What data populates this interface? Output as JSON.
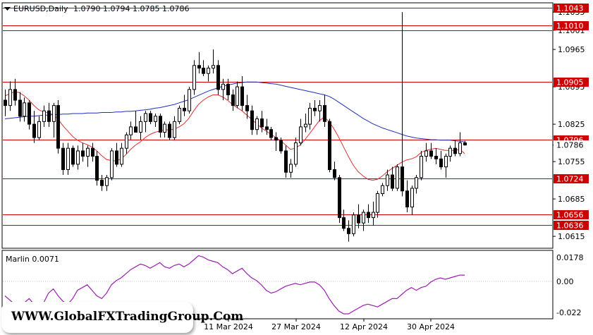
{
  "header": {
    "symbol": "EURUSD,Daily",
    "ohlc": "1.0790 1.0794 1.0785 1.0786"
  },
  "indicator": {
    "label": "Marlin 0.0071",
    "ticks": [
      "0.0178",
      "0.00",
      "-0.022"
    ],
    "color": "#9b1fb0"
  },
  "watermark": "WWW.GlobalFXTradingGroup.Com",
  "chart_data": {
    "type": "candlestick",
    "symbol": "EURUSD",
    "timeframe": "Daily",
    "y_ticks": [
      "1.1035",
      "1.1001",
      "1.0965",
      "1.0895",
      "1.0825",
      "1.0786",
      "1.0755",
      "1.0685",
      "1.0615"
    ],
    "ylim": [
      1.0594,
      1.1051
    ],
    "x_ticks": [
      "11 Mar 2024",
      "27 Mar 2024",
      "12 Apr 2024",
      "30 Apr 2024"
    ],
    "levels": [
      {
        "value": 1.1043,
        "label": "1.1043"
      },
      {
        "value": 1.101,
        "label": "1.1010"
      },
      {
        "value": 1.1001,
        "label": ""
      },
      {
        "value": 1.0905,
        "label": "1.0905"
      },
      {
        "value": 1.0796,
        "label": "1.0796"
      },
      {
        "value": 1.0724,
        "label": "1.0724"
      },
      {
        "value": 1.0656,
        "label": "1.0656"
      },
      {
        "value": 1.0636,
        "label": "1.0636"
      }
    ],
    "current_price": {
      "value": 1.0786,
      "label": "1.0786"
    },
    "level_color": "#cc0000",
    "ma_fast_color": "#e03030",
    "ma_slow_color": "#1f2fbf",
    "candles": [
      [
        1.087,
        1.089,
        1.084,
        1.086
      ],
      [
        1.086,
        1.0905,
        1.085,
        1.089
      ],
      [
        1.089,
        1.091,
        1.086,
        1.087
      ],
      [
        1.087,
        1.0885,
        1.083,
        1.084
      ],
      [
        1.084,
        1.0875,
        1.083,
        1.0865
      ],
      [
        1.0865,
        1.087,
        1.0815,
        1.0825
      ],
      [
        1.0825,
        1.085,
        1.079,
        1.08
      ],
      [
        1.08,
        1.084,
        1.0795,
        1.083
      ],
      [
        1.083,
        1.086,
        1.082,
        1.085
      ],
      [
        1.085,
        1.0865,
        1.082,
        1.083
      ],
      [
        1.083,
        1.0865,
        1.08,
        1.086
      ],
      [
        1.086,
        1.087,
        1.077,
        1.078
      ],
      [
        1.078,
        1.079,
        1.073,
        1.074
      ],
      [
        1.074,
        1.079,
        1.073,
        1.078
      ],
      [
        1.078,
        1.0785,
        1.0745,
        1.075
      ],
      [
        1.075,
        1.0785,
        1.074,
        1.0775
      ],
      [
        1.0775,
        1.079,
        1.0755,
        1.0765
      ],
      [
        1.0765,
        1.0785,
        1.0745,
        1.078
      ],
      [
        1.078,
        1.079,
        1.0755,
        1.0765
      ],
      [
        1.0765,
        1.0775,
        1.071,
        1.072
      ],
      [
        1.072,
        1.073,
        1.07,
        1.071
      ],
      [
        1.071,
        1.073,
        1.07,
        1.0725
      ],
      [
        1.0725,
        1.078,
        1.072,
        1.0775
      ],
      [
        1.0775,
        1.079,
        1.0745,
        1.075
      ],
      [
        1.075,
        1.079,
        1.0745,
        1.078
      ],
      [
        1.078,
        1.081,
        1.077,
        1.0805
      ],
      [
        1.0805,
        1.083,
        1.0795,
        1.082
      ],
      [
        1.082,
        1.085,
        1.081,
        1.081
      ],
      [
        1.081,
        1.084,
        1.0795,
        1.083
      ],
      [
        1.083,
        1.085,
        1.081,
        1.0845
      ],
      [
        1.0845,
        1.085,
        1.0825,
        1.083
      ],
      [
        1.083,
        1.0845,
        1.082,
        1.084
      ],
      [
        1.084,
        1.0845,
        1.08,
        1.081
      ],
      [
        1.081,
        1.083,
        1.08,
        1.0825
      ],
      [
        1.0825,
        1.083,
        1.0795,
        1.08
      ],
      [
        1.08,
        1.084,
        1.0795,
        1.083
      ],
      [
        1.083,
        1.086,
        1.0825,
        1.0855
      ],
      [
        1.0855,
        1.088,
        1.084,
        1.085
      ],
      [
        1.085,
        1.0895,
        1.0845,
        1.089
      ],
      [
        1.089,
        1.0945,
        1.088,
        1.0935
      ],
      [
        1.0935,
        1.096,
        1.092,
        1.093
      ],
      [
        1.093,
        1.0945,
        1.0915,
        1.092
      ],
      [
        1.092,
        1.0935,
        1.0905,
        1.093
      ],
      [
        1.093,
        1.0965,
        1.092,
        1.0935
      ],
      [
        1.0935,
        1.0945,
        1.088,
        1.089
      ],
      [
        1.089,
        1.091,
        1.087,
        1.09
      ],
      [
        1.09,
        1.091,
        1.087,
        1.088
      ],
      [
        1.088,
        1.089,
        1.085,
        1.086
      ],
      [
        1.086,
        1.0905,
        1.0855,
        1.0895
      ],
      [
        1.0895,
        1.0915,
        1.085,
        1.086
      ],
      [
        1.086,
        1.088,
        1.0835,
        1.085
      ],
      [
        1.085,
        1.086,
        1.0805,
        1.0815
      ],
      [
        1.0815,
        1.084,
        1.0805,
        1.0835
      ],
      [
        1.0835,
        1.085,
        1.081,
        1.082
      ],
      [
        1.082,
        1.0835,
        1.0805,
        1.0815
      ],
      [
        1.0815,
        1.082,
        1.0795,
        1.08
      ],
      [
        1.08,
        1.081,
        1.0775,
        1.0795
      ],
      [
        1.0795,
        1.08,
        1.077,
        1.0775
      ],
      [
        1.0775,
        1.0785,
        1.0725,
        1.0735
      ],
      [
        1.0735,
        1.076,
        1.0725,
        1.075
      ],
      [
        1.075,
        1.08,
        1.0745,
        1.079
      ],
      [
        1.079,
        1.0835,
        1.0785,
        1.082
      ],
      [
        1.082,
        1.0845,
        1.081,
        1.0825
      ],
      [
        1.0825,
        1.0865,
        1.0815,
        1.0855
      ],
      [
        1.0855,
        1.087,
        1.084,
        1.085
      ],
      [
        1.085,
        1.087,
        1.083,
        1.086
      ],
      [
        1.086,
        1.088,
        1.082,
        1.083
      ],
      [
        1.083,
        1.0835,
        1.0735,
        1.074
      ],
      [
        1.074,
        1.0755,
        1.072,
        1.0725
      ],
      [
        1.0725,
        1.073,
        1.064,
        1.065
      ],
      [
        1.065,
        1.0665,
        1.0625,
        1.063
      ],
      [
        1.063,
        1.0645,
        1.0605,
        1.062
      ],
      [
        1.062,
        1.066,
        1.0615,
        1.0655
      ],
      [
        1.0655,
        1.0675,
        1.063,
        1.064
      ],
      [
        1.064,
        1.0665,
        1.0625,
        1.066
      ],
      [
        1.066,
        1.0675,
        1.064,
        1.065
      ],
      [
        1.065,
        1.068,
        1.0635,
        1.066
      ],
      [
        1.066,
        1.07,
        1.065,
        1.0695
      ],
      [
        1.0695,
        1.0715,
        1.069,
        1.071
      ],
      [
        1.071,
        1.074,
        1.07,
        1.073
      ],
      [
        1.073,
        1.0745,
        1.07,
        1.0705
      ],
      [
        1.0705,
        1.075,
        1.07,
        1.0745
      ],
      [
        1.0745,
        1.1035,
        1.069,
        1.07
      ],
      [
        1.07,
        1.072,
        1.066,
        1.067
      ],
      [
        1.067,
        1.071,
        1.0655,
        1.0705
      ],
      [
        1.0705,
        1.073,
        1.0695,
        1.0725
      ],
      [
        1.0725,
        1.0775,
        1.072,
        1.0765
      ],
      [
        1.0765,
        1.079,
        1.0755,
        1.0775
      ],
      [
        1.0775,
        1.079,
        1.076,
        1.0765
      ],
      [
        1.0765,
        1.078,
        1.075,
        1.076
      ],
      [
        1.076,
        1.0775,
        1.074,
        1.0745
      ],
      [
        1.0745,
        1.077,
        1.0725,
        1.0765
      ],
      [
        1.0765,
        1.0785,
        1.0755,
        1.078
      ],
      [
        1.078,
        1.0795,
        1.0765,
        1.077
      ],
      [
        1.077,
        1.081,
        1.0765,
        1.079
      ],
      [
        1.079,
        1.0794,
        1.0785,
        1.0786
      ]
    ],
    "ma_fast": [
      1.0878,
      1.0882,
      1.0886,
      1.0884,
      1.0878,
      1.087,
      1.086,
      1.0852,
      1.0848,
      1.0846,
      1.0843,
      1.0834,
      1.0822,
      1.0812,
      1.0802,
      1.0795,
      1.079,
      1.0787,
      1.0782,
      1.0775,
      1.0766,
      1.0759,
      1.0757,
      1.0756,
      1.076,
      1.0768,
      1.0778,
      1.0786,
      1.0792,
      1.08,
      1.0806,
      1.081,
      1.0812,
      1.0815,
      1.0814,
      1.0816,
      1.082,
      1.0826,
      1.0836,
      1.085,
      1.0862,
      1.087,
      1.0876,
      1.088,
      1.088,
      1.0876,
      1.087,
      1.0862,
      1.0856,
      1.085,
      1.0842,
      1.0834,
      1.0826,
      1.0818,
      1.0812,
      1.0806,
      1.08,
      1.0794,
      1.0786,
      1.0778,
      1.078,
      1.0786,
      1.0796,
      1.0808,
      1.082,
      1.0832,
      1.0838,
      1.083,
      1.0816,
      1.08,
      1.0782,
      1.0764,
      1.0748,
      1.0736,
      1.0728,
      1.0722,
      1.072,
      1.0722,
      1.0728,
      1.0736,
      1.0742,
      1.0748,
      1.0754,
      1.0758,
      1.076,
      1.0764,
      1.0772,
      1.0776,
      1.0778,
      1.078,
      1.0778,
      1.0776,
      1.0776,
      1.0776,
      1.0778,
      1.077
    ],
    "ma_slow": [
      1.0835,
      1.0836,
      1.0837,
      1.0838,
      1.0839,
      1.084,
      1.084,
      1.0841,
      1.0842,
      1.0842,
      1.0843,
      1.0843,
      1.0844,
      1.0844,
      1.0845,
      1.0845,
      1.0845,
      1.0846,
      1.0846,
      1.0846,
      1.0847,
      1.0847,
      1.0847,
      1.0848,
      1.0848,
      1.0849,
      1.0849,
      1.085,
      1.0851,
      1.0852,
      1.0853,
      1.0855,
      1.0856,
      1.0858,
      1.086,
      1.0862,
      1.0865,
      1.0868,
      1.0871,
      1.0875,
      1.0879,
      1.0883,
      1.0887,
      1.089,
      1.0893,
      1.0896,
      1.0898,
      1.09,
      1.0902,
      1.0903,
      1.0904,
      1.0904,
      1.0904,
      1.0903,
      1.0902,
      1.0901,
      1.09,
      1.0898,
      1.0896,
      1.0894,
      1.0892,
      1.089,
      1.0888,
      1.0886,
      1.0884,
      1.0882,
      1.088,
      1.0877,
      1.0872,
      1.0866,
      1.086,
      1.0854,
      1.0848,
      1.0842,
      1.0836,
      1.0831,
      1.0826,
      1.0822,
      1.0818,
      1.0815,
      1.0812,
      1.0809,
      1.0806,
      1.0803,
      1.0801,
      1.0799,
      1.0798,
      1.0797,
      1.0796,
      1.0796,
      1.0795,
      1.0795,
      1.0795,
      1.0794,
      1.0793,
      1.0792
    ],
    "oscillator": [
      -0.01,
      -0.013,
      -0.016,
      -0.018,
      -0.015,
      -0.012,
      -0.016,
      -0.02,
      -0.015,
      -0.008,
      -0.005,
      -0.01,
      -0.014,
      -0.016,
      -0.012,
      -0.006,
      -0.004,
      -0.002,
      -0.006,
      -0.01,
      -0.012,
      -0.008,
      -0.002,
      0.001,
      0.003,
      0.006,
      0.009,
      0.011,
      0.013,
      0.012,
      0.01,
      0.012,
      0.014,
      0.011,
      0.01,
      0.012,
      0.013,
      0.011,
      0.013,
      0.016,
      0.019,
      0.018,
      0.016,
      0.015,
      0.014,
      0.011,
      0.009,
      0.006,
      0.008,
      0.01,
      0.006,
      0.003,
      0.001,
      -0.002,
      -0.006,
      -0.008,
      -0.007,
      -0.005,
      -0.003,
      -0.002,
      -0.001,
      -0.002,
      -0.001,
      0.0,
      0.0,
      -0.002,
      -0.006,
      -0.012,
      -0.017,
      -0.021,
      -0.023,
      -0.023,
      -0.021,
      -0.019,
      -0.017,
      -0.016,
      -0.017,
      -0.018,
      -0.016,
      -0.014,
      -0.012,
      -0.012,
      -0.009,
      -0.006,
      -0.004,
      -0.006,
      -0.004,
      -0.003,
      0.0,
      0.002,
      0.003,
      0.002,
      0.003,
      0.004,
      0.005,
      0.005
    ]
  }
}
